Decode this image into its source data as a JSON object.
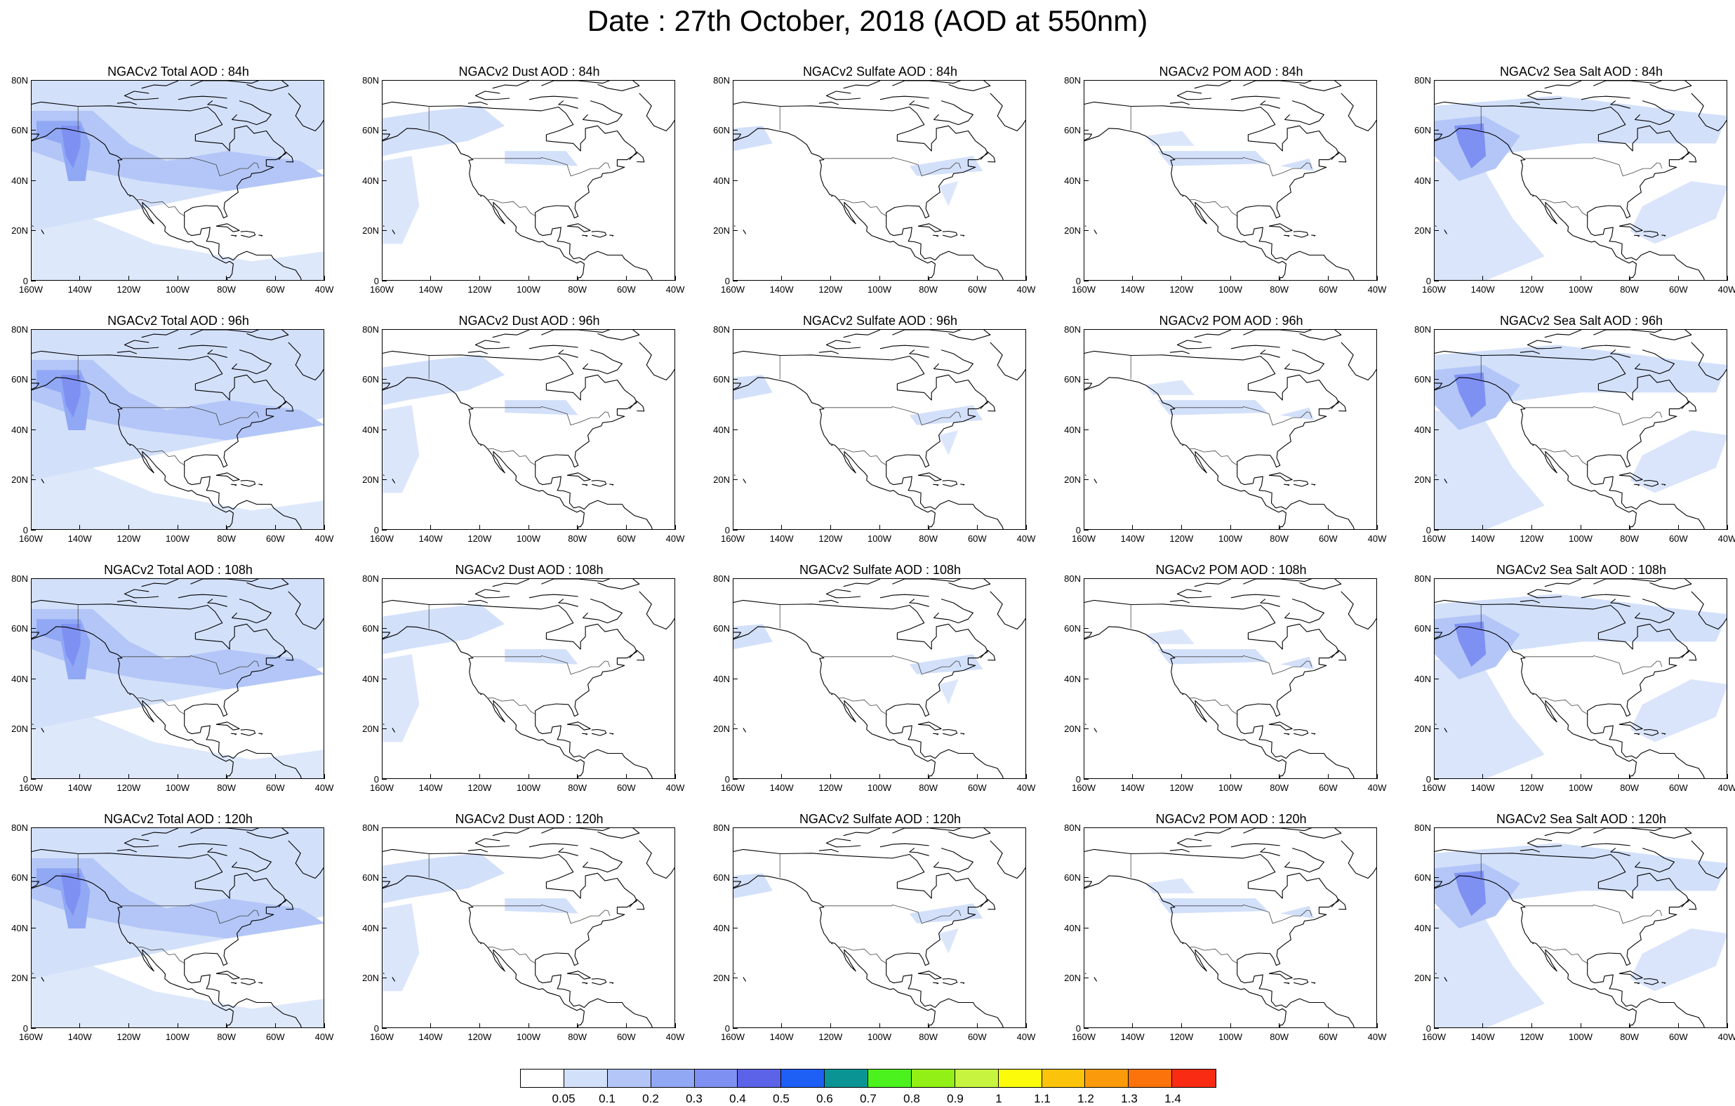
{
  "title": "Date : 27th October, 2018 (AOD at 550nm)",
  "panel_titles": [
    [
      "NGACv2 Total AOD : 84h",
      "NGACv2 Dust AOD : 84h",
      "NGACv2 Sulfate AOD : 84h",
      "NGACv2 POM AOD : 84h",
      "NGACv2 Sea Salt AOD : 84h"
    ],
    [
      "NGACv2 Total AOD : 96h",
      "NGACv2 Dust AOD : 96h",
      "NGACv2 Sulfate AOD : 96h",
      "NGACv2 POM AOD : 96h",
      "NGACv2 Sea Salt AOD : 96h"
    ],
    [
      "NGACv2 Total AOD : 108h",
      "NGACv2 Dust AOD : 108h",
      "NGACv2 Sulfate AOD : 108h",
      "NGACv2 POM AOD : 108h",
      "NGACv2 Sea Salt AOD : 108h"
    ],
    [
      "NGACv2 Total AOD : 120h",
      "NGACv2 Dust AOD : 120h",
      "NGACv2 Sulfate AOD : 120h",
      "NGACv2 POM AOD : 120h",
      "NGACv2 Sea Salt  AOD : 120h"
    ]
  ],
  "map": {
    "lon_range": [
      -160,
      -40
    ],
    "lat_range": [
      0,
      80
    ],
    "lat_ticks": [
      0,
      20,
      40,
      60,
      80
    ],
    "lat_tick_labels": [
      "0",
      "20N",
      "40N",
      "60N",
      "80N"
    ],
    "lon_ticks": [
      -160,
      -140,
      -120,
      -100,
      -80,
      -60,
      -40
    ],
    "lon_tick_labels": [
      "160W",
      "140W",
      "120W",
      "100W",
      "80W",
      "60W",
      "40W"
    ]
  },
  "colorbar": {
    "labels": [
      "0.05",
      "0.1",
      "0.2",
      "0.3",
      "0.4",
      "0.5",
      "0.6",
      "0.7",
      "0.8",
      "0.9",
      "1",
      "1.1",
      "1.2",
      "1.3",
      "1.4"
    ],
    "colors": [
      "#ffffff",
      "#d3e0fa",
      "#b3c6f7",
      "#91a8f5",
      "#7f90f3",
      "#5d63e8",
      "#1e5ff6",
      "#0a9494",
      "#4cf21d",
      "#92f016",
      "#c7f53f",
      "#fbfb0a",
      "#fbc30a",
      "#fb9a0a",
      "#fb730a",
      "#f92b13"
    ]
  }
}
